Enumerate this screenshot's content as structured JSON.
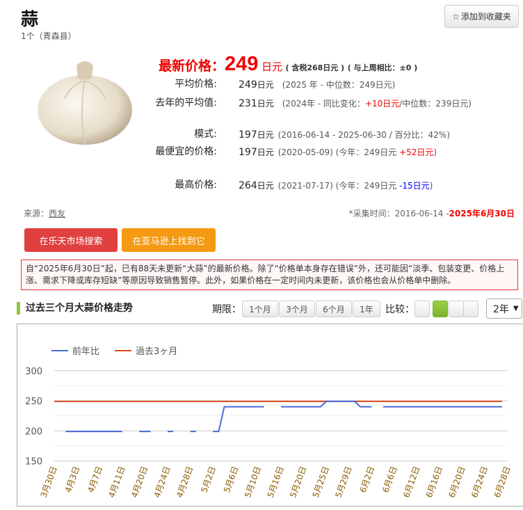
{
  "product": {
    "title": "蒜",
    "subtitle": "1个（青森县）"
  },
  "favorite": {
    "icon": "star-outline-icon",
    "label": "添加到收藏夹"
  },
  "latest": {
    "label": "最新价格：",
    "price": "249",
    "unit": "日元",
    "tax_note": "( 含税268日元 )",
    "weekly_note": "( 与上周相比：±0 )"
  },
  "stats": [
    {
      "label": "平均价格:",
      "value": "249",
      "unit": "日元",
      "note": "(2025 年 - 中位数：249日元)"
    },
    {
      "label": "去年的平均值:",
      "value": "231",
      "unit": "日元",
      "note_pre": "(2024年 - 同比变化：",
      "change": "+10日元",
      "note_post": "/中位数：239日元)"
    },
    {
      "label": "模式:",
      "value": "197",
      "unit": "日元",
      "note": "(2016-06-14 - 2025-06-30 / 百分比：42%)"
    },
    {
      "label": "最便宜的价格:",
      "value": "197",
      "unit": "日元",
      "note_pre": "(2020-05-09)  (今年：249日元 ",
      "change": "+52日元",
      "note_post": ")"
    },
    {
      "label": "最高价格:",
      "value": "264",
      "unit": "日元",
      "note_pre": "(2021-07-17) (今年：249日元 ",
      "change": "-15日元",
      "note_post": ")"
    }
  ],
  "source": {
    "label": "来源：",
    "name": "西友"
  },
  "collection": {
    "label": "*采集时间：2016-06-14 -",
    "end": "2025年6月30日"
  },
  "buttons": {
    "rakuten": "在乐天市场搜索",
    "amazon": "在亚马逊上找到它"
  },
  "notice": "自“2025年6月30日”起，已有88天未更新“大蒜”的最新价格。除了“价格单本身存在错误”外，还可能因“淡季、包装变更、价格上涨、需求下降或库存短缺”等原因导致销售暂停。此外，如果价格在一定时间内未更新，该价格也会从价格单中删除。",
  "section": {
    "title": "过去三个月大蒜价格走势",
    "period_label": "期限：",
    "periods": [
      "1个月",
      "3个月",
      "6个月",
      "1年"
    ],
    "compare_label": "比较：",
    "compare_selected": 1,
    "year_select": "2年"
  },
  "colors": {
    "price_red": "#ee0000",
    "rakuten": "#e04040",
    "amazon": "#f39a12",
    "accent_green": "#8dc63f",
    "yoy_series": "#4a6ad8",
    "recent_series": "#d94a1e"
  },
  "chart_data": {
    "type": "line",
    "y_ticks": [
      150,
      200,
      250,
      300
    ],
    "ylim": [
      140,
      300
    ],
    "grid": true,
    "legend_position": "top-left",
    "x_tick_labels": [
      "3月30日",
      "4月3日",
      "4月7日",
      "4月11日",
      "4月20日",
      "4月24日",
      "4月28日",
      "5月2日",
      "5月6日",
      "5月10日",
      "5月16日",
      "5月20日",
      "5月25日",
      "5月29日",
      "6月2日",
      "6月6日",
      "6月12日",
      "6月16日",
      "6月20日",
      "6月24日",
      "6月28日"
    ],
    "series": [
      {
        "name": "前年比",
        "color": "#4a6ad8",
        "values": [
          null,
          null,
          199,
          199,
          199,
          199,
          199,
          199,
          199,
          199,
          199,
          199,
          199,
          null,
          null,
          199,
          199,
          199,
          null,
          null,
          199,
          199,
          null,
          null,
          199,
          199,
          null,
          null,
          199,
          199,
          240,
          240,
          240,
          240,
          240,
          240,
          240,
          240,
          null,
          null,
          240,
          240,
          240,
          240,
          240,
          240,
          240,
          240,
          249,
          249,
          249,
          249,
          249,
          249,
          240,
          240,
          240,
          null,
          240,
          240,
          240,
          240,
          240,
          240,
          240,
          240,
          240,
          240,
          240,
          240,
          240,
          240,
          240,
          240,
          240,
          240,
          240,
          240,
          240,
          240
        ]
      },
      {
        "name": "過去3ヶ月",
        "color": "#d94a1e",
        "values": [
          249,
          249,
          249,
          249,
          249,
          249,
          249,
          249,
          249,
          249,
          249,
          249,
          249,
          249,
          249,
          249,
          249,
          249,
          249,
          249,
          249,
          249,
          249,
          249,
          249,
          249,
          249,
          249,
          249,
          249,
          249,
          249,
          249,
          249,
          249,
          249,
          249,
          249,
          249,
          249,
          249,
          249,
          249,
          249,
          249,
          249,
          249,
          249,
          249,
          249,
          249,
          249,
          249,
          249,
          249,
          249,
          249,
          249,
          249,
          249,
          249,
          249,
          249,
          249,
          249,
          249,
          249,
          249,
          249,
          249,
          249,
          249,
          249,
          249,
          249,
          249,
          249,
          249,
          249,
          249
        ]
      }
    ]
  }
}
